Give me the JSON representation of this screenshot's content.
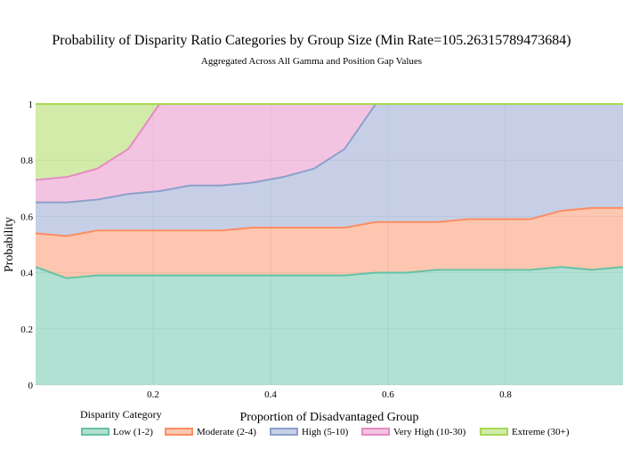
{
  "chart_data": {
    "type": "area",
    "stacked": true,
    "title": "Probability of Disparity Ratio Categories by Group Size (Min Rate=105.26315789473684)",
    "subtitle": "Aggregated Across All Gamma and Position Gap Values",
    "xlabel": "Proportion of Disadvantaged Group",
    "ylabel": "Probability",
    "xlim": [
      0,
      1
    ],
    "ylim": [
      0,
      1
    ],
    "x_ticks": [
      "0.2",
      "0.4",
      "0.6",
      "0.8"
    ],
    "y_ticks": [
      "0",
      "0.2",
      "0.4",
      "0.6",
      "0.8",
      "1"
    ],
    "grid": true,
    "legend_title": "Disparity Category",
    "legend_position": "bottom",
    "x": [
      0,
      0.053,
      0.105,
      0.158,
      0.211,
      0.263,
      0.316,
      0.368,
      0.421,
      0.474,
      0.526,
      0.579,
      0.632,
      0.684,
      0.737,
      0.789,
      0.842,
      0.895,
      0.947,
      1.0
    ],
    "series": [
      {
        "name": "Low (1-2)",
        "color": "#66c2a5",
        "values": [
          0.42,
          0.38,
          0.39,
          0.39,
          0.39,
          0.39,
          0.39,
          0.39,
          0.39,
          0.39,
          0.39,
          0.4,
          0.4,
          0.41,
          0.41,
          0.41,
          0.41,
          0.42,
          0.41,
          0.42
        ]
      },
      {
        "name": "Moderate (2-4)",
        "color": "#fc8d62",
        "values": [
          0.12,
          0.15,
          0.16,
          0.16,
          0.16,
          0.16,
          0.16,
          0.17,
          0.17,
          0.17,
          0.17,
          0.18,
          0.18,
          0.17,
          0.18,
          0.18,
          0.18,
          0.2,
          0.22,
          0.21
        ]
      },
      {
        "name": "High (5-10)",
        "color": "#8da0cb",
        "values": [
          0.11,
          0.12,
          0.11,
          0.13,
          0.14,
          0.16,
          0.16,
          0.16,
          0.18,
          0.21,
          0.28,
          0.42,
          0.42,
          0.42,
          0.41,
          0.41,
          0.41,
          0.38,
          0.37,
          0.37
        ]
      },
      {
        "name": "Very High (10-30)",
        "color": "#e78ac3",
        "values": [
          0.08,
          0.09,
          0.11,
          0.16,
          0.31,
          0.29,
          0.29,
          0.28,
          0.26,
          0.23,
          0.16,
          0.0,
          0,
          0,
          0,
          0,
          0,
          0,
          0,
          0
        ]
      },
      {
        "name": "Extreme (30+)",
        "color": "#a6d854",
        "values": [
          0.27,
          0.26,
          0.23,
          0.16,
          0.0,
          0,
          0,
          0,
          0,
          0,
          0,
          0,
          0,
          0,
          0,
          0,
          0,
          0,
          0,
          0
        ]
      }
    ]
  }
}
